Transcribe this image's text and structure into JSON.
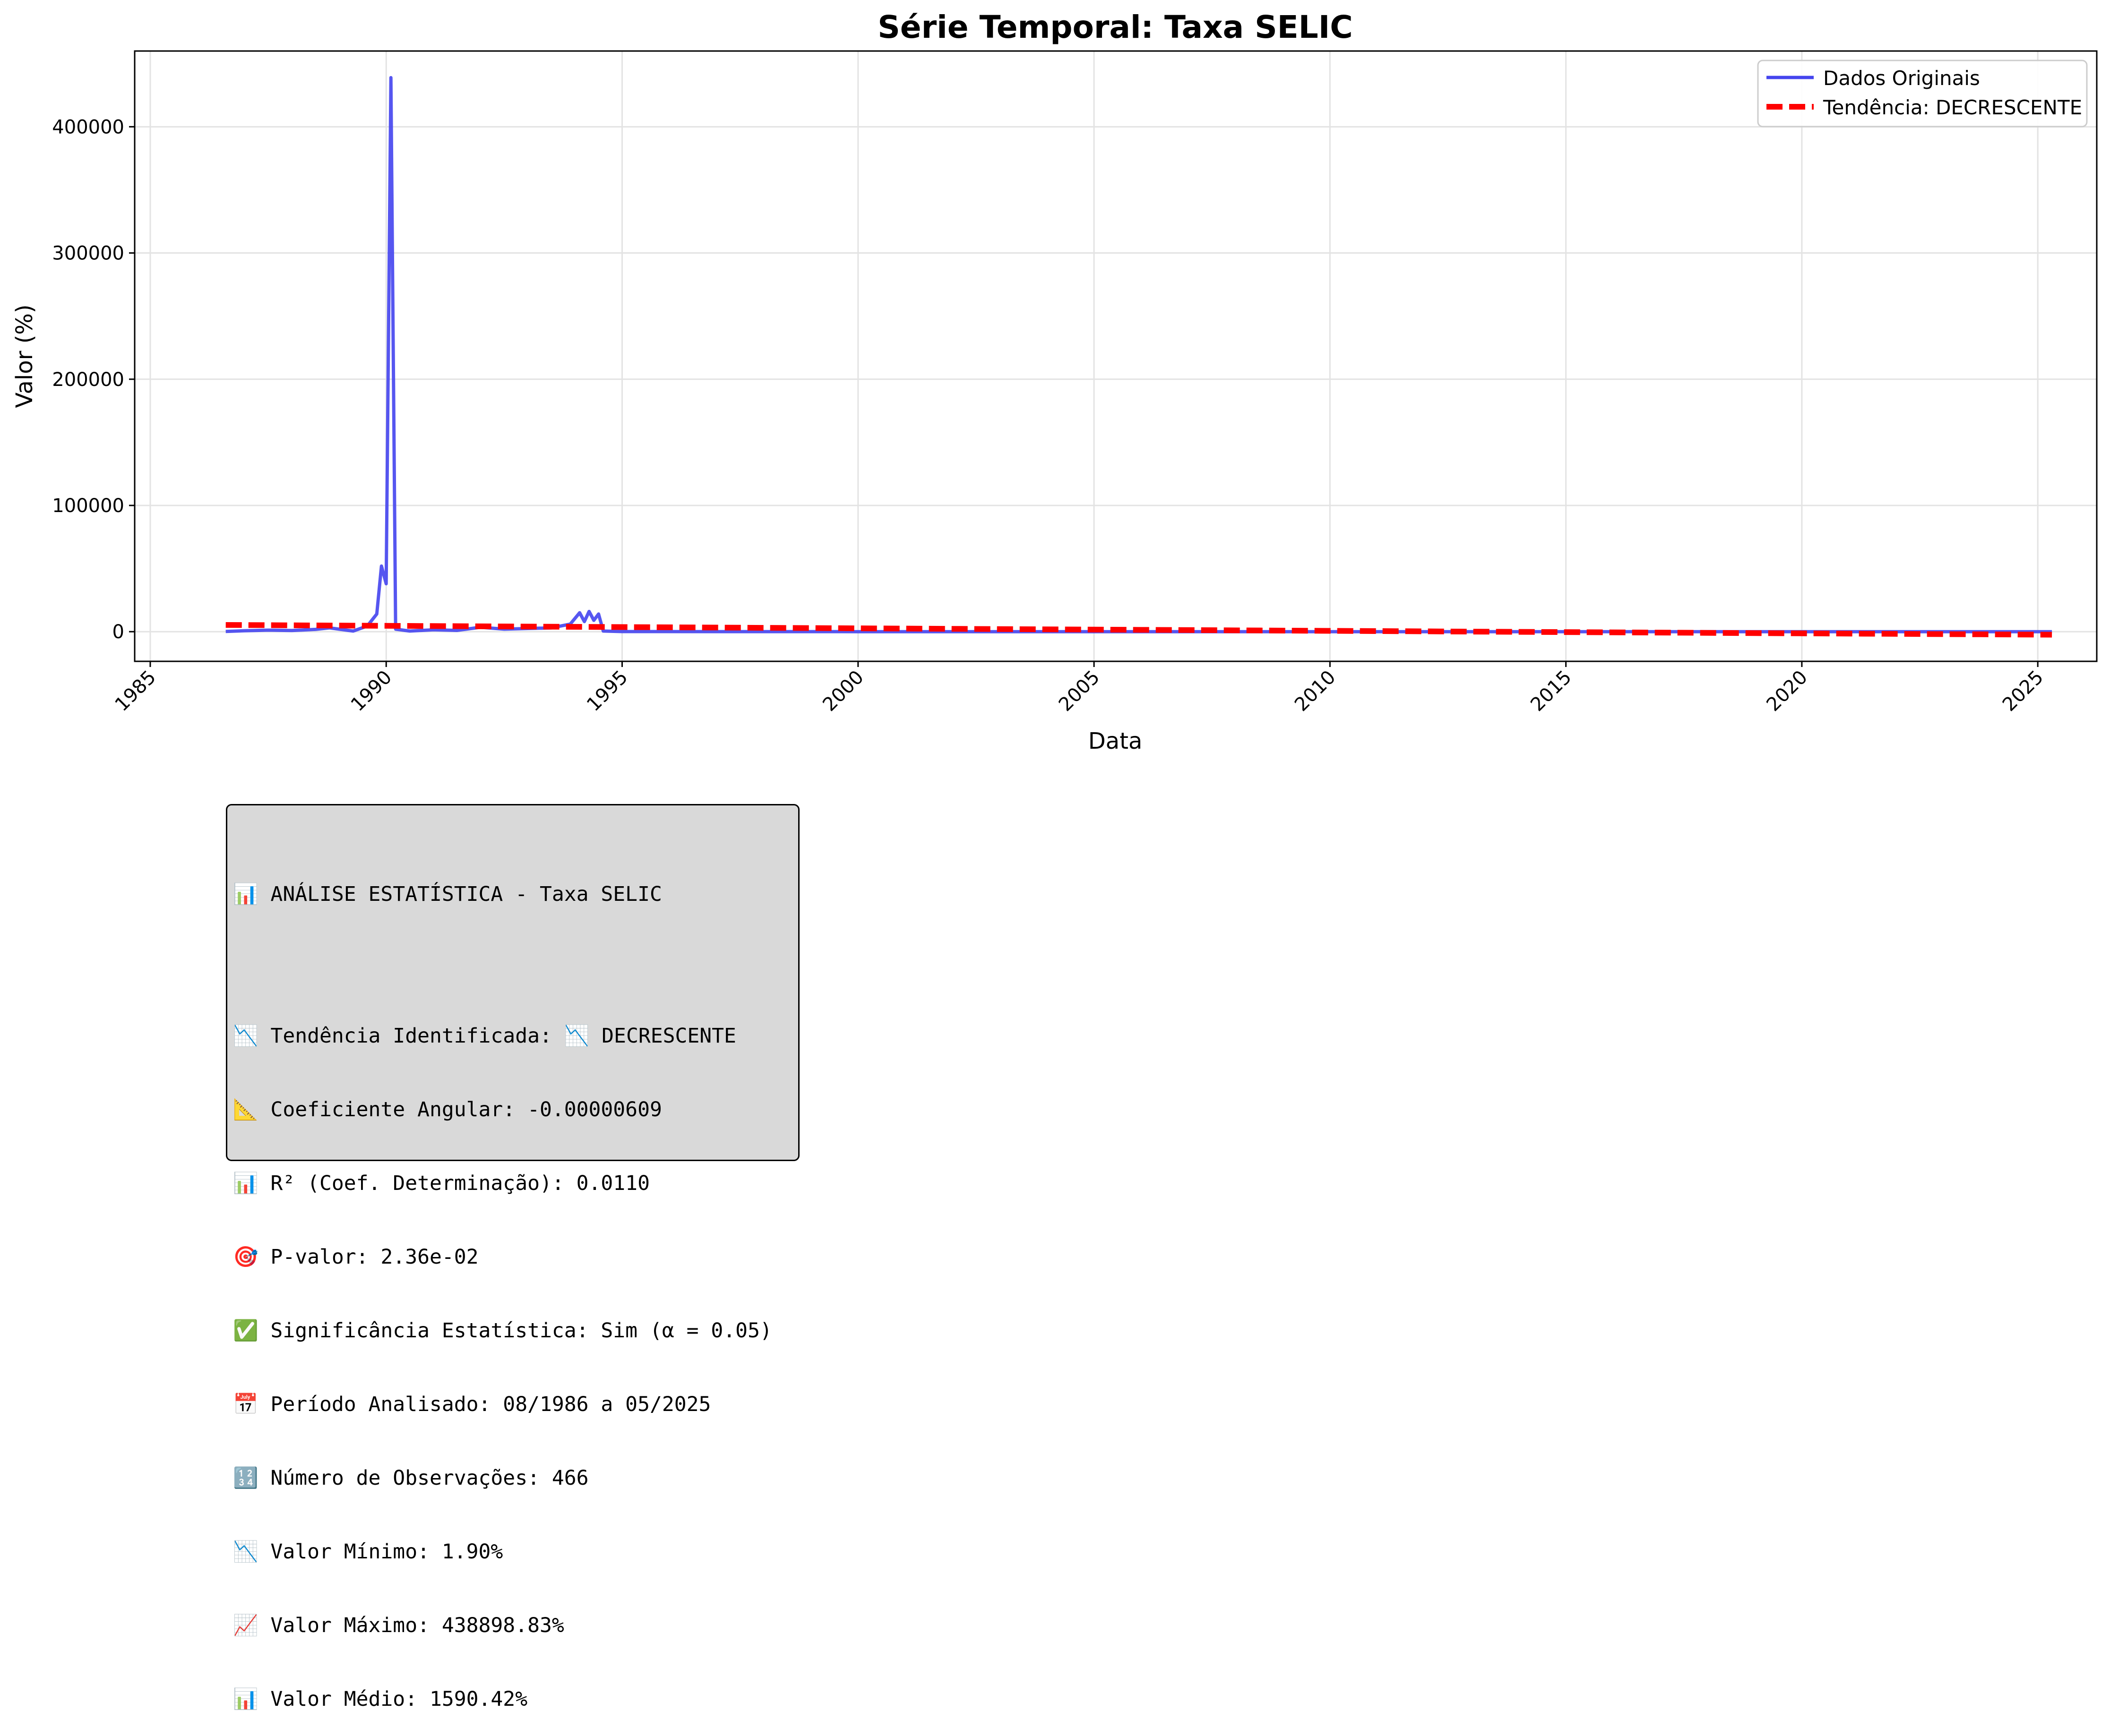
{
  "chart_data": {
    "type": "line",
    "title": "Série Temporal: Taxa SELIC",
    "xlabel": "Data",
    "ylabel": "Valor (%)",
    "xlim": [
      1984.67,
      2026.25
    ],
    "ylim": [
      -23500,
      460000
    ],
    "xticks": [
      1985,
      1990,
      1995,
      2000,
      2005,
      2010,
      2015,
      2020,
      2025
    ],
    "yticks": [
      0,
      100000,
      200000,
      300000,
      400000
    ],
    "grid": true,
    "legend": "top-right",
    "series": [
      {
        "name": "Dados Originais",
        "color": "#4444ee",
        "style": "solid",
        "points": [
          [
            1986.6,
            200
          ],
          [
            1987.0,
            700
          ],
          [
            1987.5,
            1200
          ],
          [
            1988.0,
            900
          ],
          [
            1988.5,
            1800
          ],
          [
            1988.8,
            3000
          ],
          [
            1989.0,
            2000
          ],
          [
            1989.3,
            500
          ],
          [
            1989.6,
            4500
          ],
          [
            1989.8,
            14000
          ],
          [
            1989.9,
            52000
          ],
          [
            1990.0,
            38000
          ],
          [
            1990.1,
            438898.83
          ],
          [
            1990.2,
            2000
          ],
          [
            1990.5,
            500
          ],
          [
            1991.0,
            1500
          ],
          [
            1991.5,
            1000
          ],
          [
            1992.0,
            3500
          ],
          [
            1992.5,
            2000
          ],
          [
            1993.0,
            2500
          ],
          [
            1993.5,
            3000
          ],
          [
            1993.9,
            6000
          ],
          [
            1994.1,
            15000
          ],
          [
            1994.2,
            8000
          ],
          [
            1994.3,
            16000
          ],
          [
            1994.4,
            9000
          ],
          [
            1994.5,
            14000
          ],
          [
            1994.6,
            500
          ],
          [
            1995.0,
            60
          ],
          [
            2000.0,
            20
          ],
          [
            2005.0,
            20
          ],
          [
            2010.0,
            10
          ],
          [
            2015.0,
            14
          ],
          [
            2020.0,
            3
          ],
          [
            2025.3,
            14
          ]
        ]
      },
      {
        "name": "Tendência: DECRESCENTE",
        "color": "#ff0000",
        "style": "dashed",
        "points": [
          [
            1986.6,
            5300
          ],
          [
            2025.3,
            -2400
          ]
        ]
      }
    ]
  },
  "stats_panel": {
    "lines": [
      "📊 ANÁLISE ESTATÍSTICA - Taxa SELIC",
      "",
      "📉 Tendência Identificada: 📉 DECRESCENTE",
      "📐 Coeficiente Angular: -0.00000609",
      "📊 R² (Coef. Determinação): 0.0110",
      "🎯 P-valor: 2.36e-02",
      "✅ Significância Estatística: Sim (α = 0.05)",
      "📅 Período Analisado: 08/1986 a 05/2025",
      "🔢 Número de Observações: 466",
      "📉 Valor Mínimo: 1.90%",
      "📈 Valor Máximo: 438898.83%",
      "📊 Valor Médio: 1590.42%"
    ]
  }
}
